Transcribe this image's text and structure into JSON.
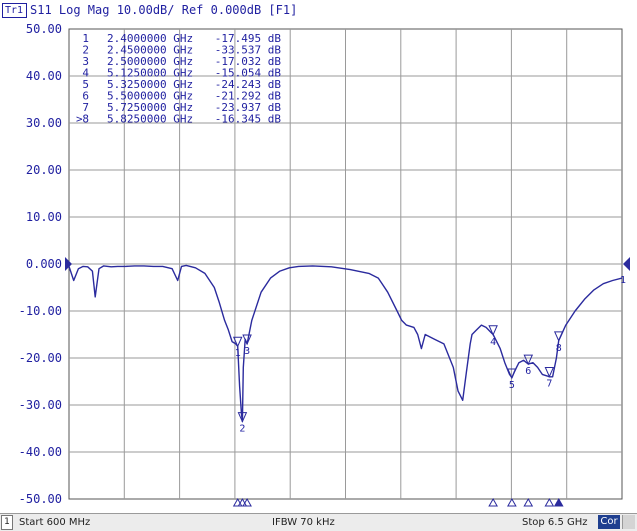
{
  "header": {
    "trace_badge": "Tr1",
    "title": "S11 Log Mag 10.00dB/ Ref 0.000dB [F1]"
  },
  "status": {
    "channel": "1",
    "start": "Start 600 MHz",
    "ifbw": "IFBW 70 kHz",
    "stop": "Stop 6.5 GHz",
    "cor": "Cor"
  },
  "colors": {
    "trace": "#2b2b9e",
    "text": "#1f1fa0",
    "grid": "#9a9a9a",
    "background": "#ffffff",
    "cor_badge": "#1f3f8f"
  },
  "chart_data": {
    "type": "line",
    "title": "S11 Log Mag 10.00dB/ Ref 0.000dB [F1]",
    "x_start_ghz": 0.6,
    "x_stop_ghz": 6.5,
    "ylim": [
      -50,
      50
    ],
    "y_ticks": [
      "50.00",
      "40.00",
      "30.00",
      "20.00",
      "10.00",
      "0.000",
      "-10.00",
      "-20.00",
      "-30.00",
      "-40.00",
      "-50.00"
    ],
    "reference_marker_label": "1",
    "grid": true,
    "series": [
      {
        "name": "S11",
        "x": [
          0.6,
          0.65,
          0.7,
          0.75,
          0.8,
          0.85,
          0.88,
          0.92,
          0.97,
          1.05,
          1.12,
          1.2,
          1.3,
          1.4,
          1.5,
          1.6,
          1.7,
          1.76,
          1.8,
          1.85,
          1.95,
          2.05,
          2.15,
          2.2,
          2.26,
          2.3,
          2.34,
          2.38,
          2.4,
          2.42,
          2.44,
          2.45,
          2.46,
          2.48,
          2.5,
          2.55,
          2.65,
          2.75,
          2.85,
          2.95,
          3.05,
          3.2,
          3.4,
          3.6,
          3.8,
          3.9,
          4.0,
          4.1,
          4.15,
          4.2,
          4.28,
          4.32,
          4.36,
          4.4,
          4.5,
          4.6,
          4.7,
          4.75,
          4.8,
          4.84,
          4.88,
          4.9,
          4.95,
          5.0,
          5.05,
          5.1,
          5.125,
          5.2,
          5.25,
          5.3,
          5.325,
          5.35,
          5.4,
          5.45,
          5.5,
          5.55,
          5.6,
          5.65,
          5.7,
          5.725,
          5.76,
          5.8,
          5.825,
          5.9,
          6.0,
          6.1,
          6.2,
          6.3,
          6.4,
          6.5
        ],
        "values": [
          -0.5,
          -3.5,
          -1.0,
          -0.5,
          -0.6,
          -1.5,
          -7.0,
          -1.0,
          -0.4,
          -0.6,
          -0.5,
          -0.5,
          -0.4,
          -0.4,
          -0.5,
          -0.5,
          -1.0,
          -3.5,
          -0.5,
          -0.3,
          -0.8,
          -2.0,
          -5.0,
          -8.0,
          -12.0,
          -14.0,
          -16.5,
          -17.0,
          -17.5,
          -26.0,
          -32.0,
          -33.5,
          -22.0,
          -16.0,
          -17.0,
          -12.0,
          -6.0,
          -3.0,
          -1.5,
          -0.8,
          -0.5,
          -0.4,
          -0.6,
          -1.2,
          -2.0,
          -3.0,
          -6.0,
          -10.0,
          -12.0,
          -13.0,
          -13.5,
          -15.0,
          -18.0,
          -15.0,
          -16.0,
          -17.0,
          -22.0,
          -27.0,
          -29.0,
          -23.0,
          -17.0,
          -15.0,
          -14.0,
          -13.0,
          -13.5,
          -14.5,
          -15.0,
          -18.0,
          -21.0,
          -23.5,
          -24.2,
          -23.0,
          -21.0,
          -20.5,
          -21.3,
          -21.0,
          -22.0,
          -23.5,
          -23.8,
          -24.0,
          -24.0,
          -20.0,
          -16.3,
          -13.0,
          -10.0,
          -7.5,
          -5.5,
          -4.2,
          -3.5,
          -3.0
        ]
      }
    ],
    "markers": [
      {
        "n": "1",
        "freq_ghz": 2.4,
        "freq_label": "2.4000000 GHz",
        "value": -17.495,
        "value_label": "-17.495 dB",
        "active": false
      },
      {
        "n": "2",
        "freq_ghz": 2.45,
        "freq_label": "2.4500000 GHz",
        "value": -33.537,
        "value_label": "-33.537 dB",
        "active": false
      },
      {
        "n": "3",
        "freq_ghz": 2.5,
        "freq_label": "2.5000000 GHz",
        "value": -17.032,
        "value_label": "-17.032 dB",
        "active": false
      },
      {
        "n": "4",
        "freq_ghz": 5.125,
        "freq_label": "5.1250000 GHz",
        "value": -15.054,
        "value_label": "-15.054 dB",
        "active": false
      },
      {
        "n": "5",
        "freq_ghz": 5.325,
        "freq_label": "5.3250000 GHz",
        "value": -24.243,
        "value_label": "-24.243 dB",
        "active": false
      },
      {
        "n": "6",
        "freq_ghz": 5.5,
        "freq_label": "5.5000000 GHz",
        "value": -21.292,
        "value_label": "-21.292 dB",
        "active": false
      },
      {
        "n": "7",
        "freq_ghz": 5.725,
        "freq_label": "5.7250000 GHz",
        "value": -23.937,
        "value_label": "-23.937 dB",
        "active": false
      },
      {
        "n": "8",
        "freq_ghz": 5.825,
        "freq_label": "5.8250000 GHz",
        "value": -16.345,
        "value_label": "-16.345 dB",
        "active": true
      }
    ]
  }
}
